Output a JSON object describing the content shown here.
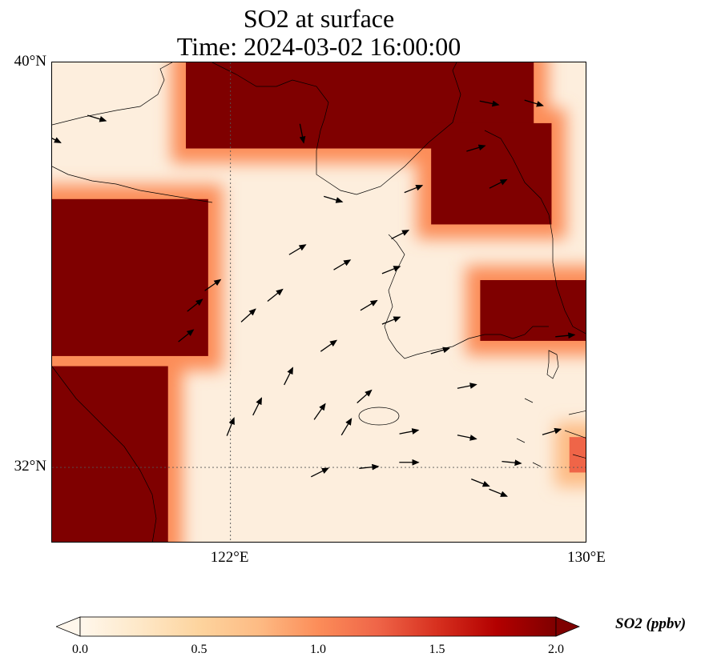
{
  "title": {
    "line1": "SO2 at surface",
    "line2": "Time: 2024-03-02 16:00:00"
  },
  "map": {
    "lon_range": [
      118.0,
      130.0
    ],
    "lat_range": [
      30.5,
      40.0
    ],
    "lat_ticks": [
      {
        "value": 40,
        "label": "40°N"
      },
      {
        "value": 32,
        "label": "32°N"
      }
    ],
    "lon_ticks": [
      {
        "value": 122,
        "label": "122°E"
      },
      {
        "value": 130,
        "label": "130°E"
      }
    ],
    "gridlines": {
      "lons": [
        122
      ],
      "lats": [
        32
      ]
    },
    "field": {
      "variable": "SO2",
      "units": "ppbv",
      "high_regions": [
        {
          "name": "north-china-plain",
          "lon": [
            118.0,
            121.5
          ],
          "lat": [
            34.2,
            37.3
          ],
          "level": 2.0
        },
        {
          "name": "liaoning",
          "lon": [
            121.0,
            128.8
          ],
          "lat": [
            38.3,
            40.0
          ],
          "level": 2.0
        },
        {
          "name": "north-korea",
          "lon": [
            126.5,
            129.2
          ],
          "lat": [
            36.8,
            38.8
          ],
          "level": 2.0
        },
        {
          "name": "southeast-korea",
          "lon": [
            127.6,
            130.0
          ],
          "lat": [
            34.5,
            35.7
          ],
          "level": 2.0
        },
        {
          "name": "jiangsu",
          "lon": [
            118.0,
            120.6
          ],
          "lat": [
            30.5,
            34.0
          ],
          "level": 2.0
        },
        {
          "name": "kyushu",
          "lon": [
            129.6,
            130.0
          ],
          "lat": [
            31.9,
            32.6
          ],
          "level": 1.2
        }
      ]
    },
    "wind_arrows": [
      {
        "lon": 121.2,
        "lat": 35.2,
        "u": 1.0,
        "v": 0.8
      },
      {
        "lon": 121.6,
        "lat": 35.6,
        "u": 1.0,
        "v": 0.7
      },
      {
        "lon": 122.4,
        "lat": 35.0,
        "u": 1.0,
        "v": 0.9
      },
      {
        "lon": 123.0,
        "lat": 35.4,
        "u": 1.0,
        "v": 0.8
      },
      {
        "lon": 123.5,
        "lat": 36.3,
        "u": 1.0,
        "v": 0.6
      },
      {
        "lon": 124.5,
        "lat": 36.0,
        "u": 1.0,
        "v": 0.6
      },
      {
        "lon": 125.1,
        "lat": 35.2,
        "u": 1.0,
        "v": 0.6
      },
      {
        "lon": 124.2,
        "lat": 34.4,
        "u": 1.0,
        "v": 0.7
      },
      {
        "lon": 123.3,
        "lat": 33.8,
        "u": 0.5,
        "v": 1.0
      },
      {
        "lon": 122.6,
        "lat": 33.2,
        "u": 0.5,
        "v": 1.0
      },
      {
        "lon": 122.0,
        "lat": 32.8,
        "u": 0.4,
        "v": 1.0
      },
      {
        "lon": 121.0,
        "lat": 34.6,
        "u": 1.0,
        "v": 0.8
      },
      {
        "lon": 125.6,
        "lat": 35.9,
        "u": 1.0,
        "v": 0.4
      },
      {
        "lon": 125.8,
        "lat": 36.6,
        "u": 1.0,
        "v": 0.5
      },
      {
        "lon": 126.1,
        "lat": 37.5,
        "u": 1.0,
        "v": 0.4
      },
      {
        "lon": 127.5,
        "lat": 38.3,
        "u": 1.0,
        "v": 0.3
      },
      {
        "lon": 128.0,
        "lat": 37.6,
        "u": 1.0,
        "v": 0.5
      },
      {
        "lon": 128.8,
        "lat": 39.2,
        "u": 1.0,
        "v": -0.3
      },
      {
        "lon": 127.8,
        "lat": 39.2,
        "u": 1.0,
        "v": -0.2
      },
      {
        "lon": 125.6,
        "lat": 34.9,
        "u": 1.0,
        "v": 0.4
      },
      {
        "lon": 126.7,
        "lat": 34.3,
        "u": 1.0,
        "v": 0.3
      },
      {
        "lon": 127.3,
        "lat": 33.6,
        "u": 1.0,
        "v": 0.2
      },
      {
        "lon": 125.0,
        "lat": 33.4,
        "u": 0.9,
        "v": 0.8
      },
      {
        "lon": 124.6,
        "lat": 32.8,
        "u": 0.6,
        "v": 1.0
      },
      {
        "lon": 124.0,
        "lat": 33.1,
        "u": 0.7,
        "v": 1.0
      },
      {
        "lon": 126.0,
        "lat": 32.7,
        "u": 1.0,
        "v": 0.2
      },
      {
        "lon": 127.3,
        "lat": 32.6,
        "u": 1.0,
        "v": -0.2
      },
      {
        "lon": 128.3,
        "lat": 32.1,
        "u": 1.0,
        "v": -0.1
      },
      {
        "lon": 126.0,
        "lat": 32.1,
        "u": 1.0,
        "v": 0.0
      },
      {
        "lon": 125.1,
        "lat": 32.0,
        "u": 1.0,
        "v": 0.1
      },
      {
        "lon": 127.6,
        "lat": 31.7,
        "u": 1.0,
        "v": -0.4
      },
      {
        "lon": 128.0,
        "lat": 31.5,
        "u": 1.0,
        "v": -0.4
      },
      {
        "lon": 124.0,
        "lat": 31.9,
        "u": 1.0,
        "v": 0.5
      },
      {
        "lon": 129.5,
        "lat": 34.6,
        "u": 1.0,
        "v": 0.1
      },
      {
        "lon": 129.2,
        "lat": 32.7,
        "u": 1.0,
        "v": 0.3
      },
      {
        "lon": 124.3,
        "lat": 37.3,
        "u": 1.0,
        "v": -0.3
      },
      {
        "lon": 123.6,
        "lat": 38.6,
        "u": 0.2,
        "v": -1.0
      },
      {
        "lon": 119.0,
        "lat": 38.9,
        "u": 1.0,
        "v": -0.3
      },
      {
        "lon": 118.0,
        "lat": 38.5,
        "u": 1.0,
        "v": -0.5
      }
    ]
  },
  "colorbar": {
    "colormap": "OrRd",
    "range": [
      0.0,
      2.0
    ],
    "ticks": [
      "0.0",
      "0.5",
      "1.0",
      "1.5",
      "2.0"
    ],
    "label": "SO2 (ppbv)",
    "extend": "both"
  }
}
